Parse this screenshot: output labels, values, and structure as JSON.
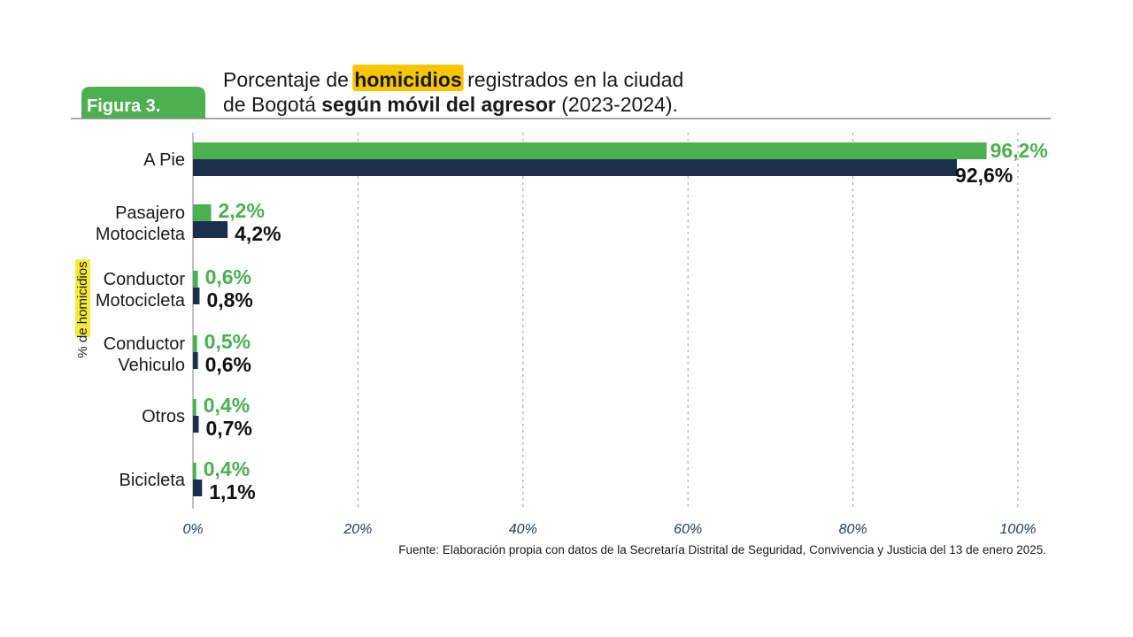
{
  "figure_label": "Figura 3.",
  "title": {
    "line1_pre": "Porcentaje de ",
    "line1_highlight": "homicidios",
    "line1_post": " registrados en la ciudad",
    "line2_pre": "de Bogotá ",
    "line2_bold": "según móvil del agresor",
    "line2_post": " (2023-2024)."
  },
  "source": "Fuente: Elaboración propia con datos de la Secretaría Distrital de Seguridad, Convivencia y Justicia del 13 de enero 2025.",
  "colors": {
    "series_2024": "#4caf50",
    "series_2023": "#1c2f4d",
    "badge": "#4caf50",
    "highlight": "#f7c600",
    "ylabel_highlight": "#f5ea3b",
    "axis": "#9a9a9a"
  },
  "chart_data": {
    "type": "bar",
    "orientation": "horizontal",
    "categories": [
      [
        "A Pie"
      ],
      [
        "Pasajero",
        "Motocicleta"
      ],
      [
        "Conductor",
        "Motocicleta"
      ],
      [
        "Conductor",
        "Vehiculo"
      ],
      [
        "Otros"
      ],
      [
        "Bicicleta"
      ]
    ],
    "series": [
      {
        "values": [
          96.2,
          2.2,
          0.6,
          0.5,
          0.4,
          0.4
        ],
        "labels": [
          "96,2%",
          "2,2%",
          "0,6%",
          "0,5%",
          "0,4%",
          "0,4%"
        ],
        "color": "#4caf50"
      },
      {
        "values": [
          92.6,
          4.2,
          0.8,
          0.6,
          0.7,
          1.1
        ],
        "labels": [
          "92,6%",
          "4,2%",
          "0,8%",
          "0,6%",
          "0,7%",
          "1,1%"
        ],
        "color": "#1c2f4d"
      }
    ],
    "ylabel": "% de homicidios",
    "xlim": [
      0,
      100
    ],
    "xticks": [
      0,
      20,
      40,
      60,
      80,
      100
    ],
    "xtick_labels": [
      "0%",
      "20%",
      "40%",
      "60%",
      "80%",
      "100%"
    ],
    "grid": "vertical-dashed",
    "legend": "none"
  }
}
